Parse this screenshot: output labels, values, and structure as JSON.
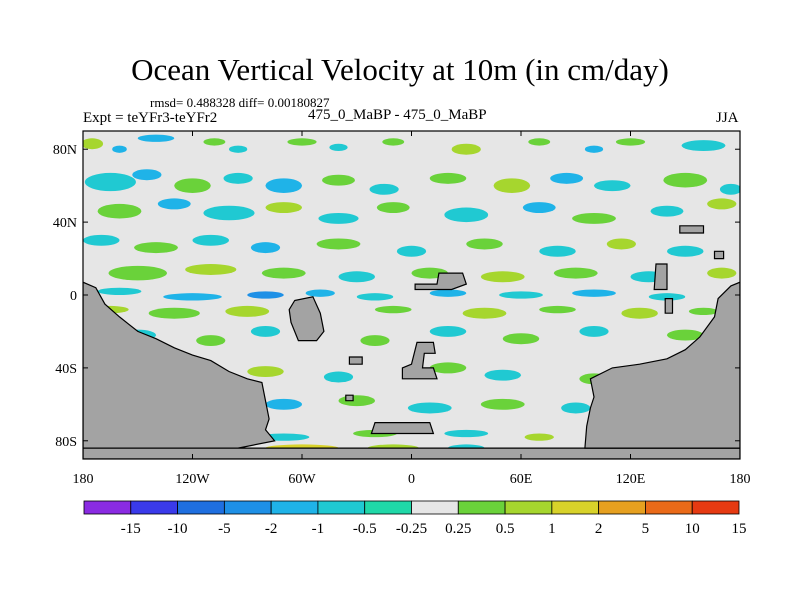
{
  "chart_data": {
    "type": "heatmap",
    "title": "Ocean Vertical Velocity at 10m (in cm/day)",
    "stats_line": "rmsd= 0.488328 diff= 0.00180827",
    "left_label": "Expt = teYFr3-teYFr2",
    "center_label": "475_0_MaBP - 475_0_MaBP",
    "right_label": "JJA",
    "x_ticks": [
      "180",
      "120W",
      "60W",
      "0",
      "60E",
      "120E",
      "180"
    ],
    "x_tick_values": [
      -180,
      -120,
      -60,
      0,
      60,
      120,
      180
    ],
    "y_ticks": [
      "80N",
      "40N",
      "0",
      "40S",
      "80S"
    ],
    "y_tick_values": [
      80,
      40,
      0,
      -40,
      -80
    ],
    "xlim": [
      -180,
      180
    ],
    "ylim": [
      -90,
      90
    ],
    "colorbar": {
      "labels": [
        "-15",
        "-10",
        "-5",
        "-2",
        "-1",
        "-0.5",
        "-0.25",
        "0.25",
        "0.5",
        "1",
        "2",
        "5",
        "10",
        "15"
      ],
      "colors": [
        "#8a2be2",
        "#3a3aea",
        "#1f6fe0",
        "#1e90e6",
        "#1fb3e8",
        "#20c9d2",
        "#20d8a8",
        "#e6e6e6",
        "#6ad23a",
        "#a6d62e",
        "#d8d22a",
        "#e6a020",
        "#ea6a18",
        "#e63a12"
      ]
    },
    "land_color": "#a3a3a3",
    "background_color": "#e6e6e6"
  }
}
